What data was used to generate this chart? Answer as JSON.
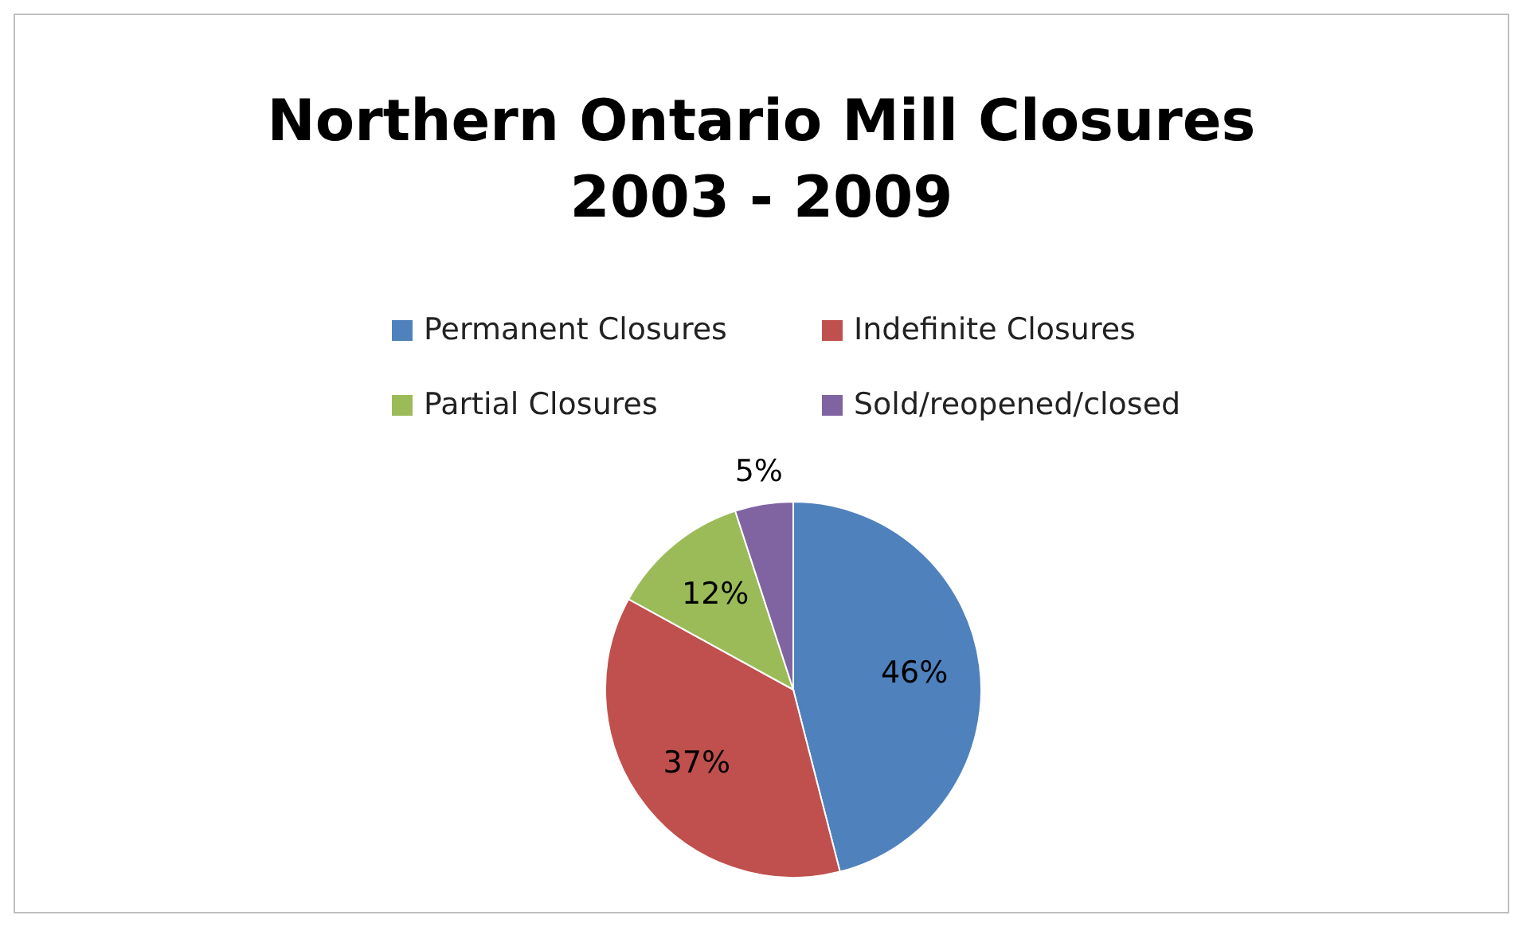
{
  "chart_data": {
    "type": "pie",
    "title": "Northern Ontario Mill Closures\n2003 - 2009",
    "categories": [
      "Permanent Closures",
      "Indefinite Closures",
      "Partial Closures",
      "Sold/reopened/closed"
    ],
    "values": [
      46,
      37,
      12,
      5
    ],
    "colors": [
      "#4f81bd",
      "#c0504d",
      "#9bbb59",
      "#8064a2"
    ],
    "value_labels": [
      "46%",
      "37%",
      "12%",
      "5%"
    ],
    "legend": "top"
  }
}
